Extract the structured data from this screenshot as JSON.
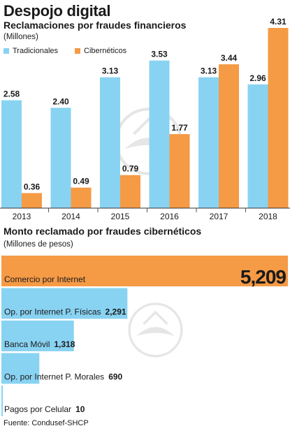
{
  "title": "Despojo digital",
  "chart_data": [
    {
      "type": "bar",
      "title": "Reclamaciones por fraudes financieros",
      "unit": "(Millones)",
      "categories": [
        "2013",
        "2014",
        "2015",
        "2016",
        "2017",
        "2018"
      ],
      "series": [
        {
          "name": "Tradicionales",
          "color": "#89d3f2",
          "values": [
            2.58,
            2.4,
            3.13,
            3.53,
            3.13,
            2.96
          ],
          "labels": [
            "2.58",
            "2.40",
            "3.13",
            "3.53",
            "3.13",
            "2.96"
          ]
        },
        {
          "name": "Cibernéticos",
          "color": "#f59a45",
          "values": [
            0.36,
            0.49,
            0.79,
            1.77,
            3.44,
            4.31
          ],
          "labels": [
            "0.36",
            "0.49",
            "0.79",
            "1.77",
            "3.44",
            "4.31"
          ]
        }
      ],
      "ylim": [
        0,
        4.31
      ],
      "grid": false,
      "legend": "top-left"
    },
    {
      "type": "bar",
      "orientation": "horizontal",
      "title": "Monto reclamado por fraudes cibernéticos",
      "unit": "(Millones de pesos)",
      "categories": [
        "Comercio por Internet",
        "Op. por Internet P. Físicas",
        "Banca Móvil",
        "Op. por Internet P. Morales",
        "Pagos por Celular"
      ],
      "values": [
        5209,
        2291,
        1318,
        690,
        10
      ],
      "labels": [
        "5,209",
        "2,291",
        "1,318",
        "690",
        "10"
      ],
      "colors": [
        "#f59a45",
        "#89d3f2",
        "#89d3f2",
        "#89d3f2",
        "#89d3f2"
      ],
      "xlim": [
        0,
        5209
      ]
    }
  ],
  "source": "Fuente: Condusef-SHCP"
}
